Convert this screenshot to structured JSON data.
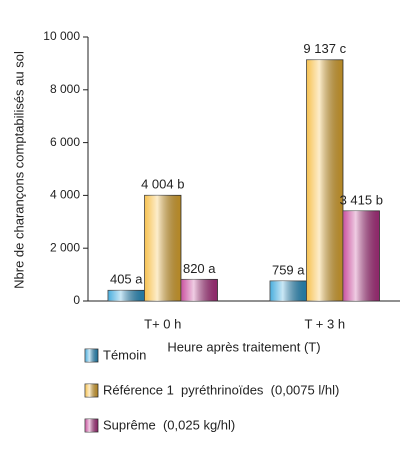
{
  "chart_data": {
    "type": "bar",
    "y_label": "Nbre de charançons comptabilisés au sol",
    "x_label": "Heure après traitement (T)",
    "categories": [
      "T+ 0 h",
      "T + 3 h"
    ],
    "series": [
      {
        "name": "Témoin",
        "color": "#2a9fd8",
        "values": [
          405,
          759
        ],
        "value_labels": [
          "405 a",
          "759 a"
        ]
      },
      {
        "name": "Référence 1  pyréthrinoïdes  (0,0075 l/hl)",
        "color": "#f5b731",
        "values": [
          4004,
          9137
        ],
        "value_labels": [
          "4 004 b",
          "9 137 c"
        ]
      },
      {
        "name": "Suprême  (0,025 kg/hl)",
        "color": "#c0338e",
        "values": [
          820,
          3415
        ],
        "value_labels": [
          "820 a",
          "3 415 b"
        ]
      }
    ],
    "ylim": [
      0,
      10000
    ],
    "yticks": [
      0,
      {
        "value": 2000,
        "label": "2 000"
      },
      {
        "value": 4000,
        "label": "4 000"
      },
      {
        "value": 6000,
        "label": "6 000"
      },
      {
        "value": 8000,
        "label": "8 000"
      },
      {
        "value": 10000,
        "label": "10 000"
      }
    ]
  }
}
